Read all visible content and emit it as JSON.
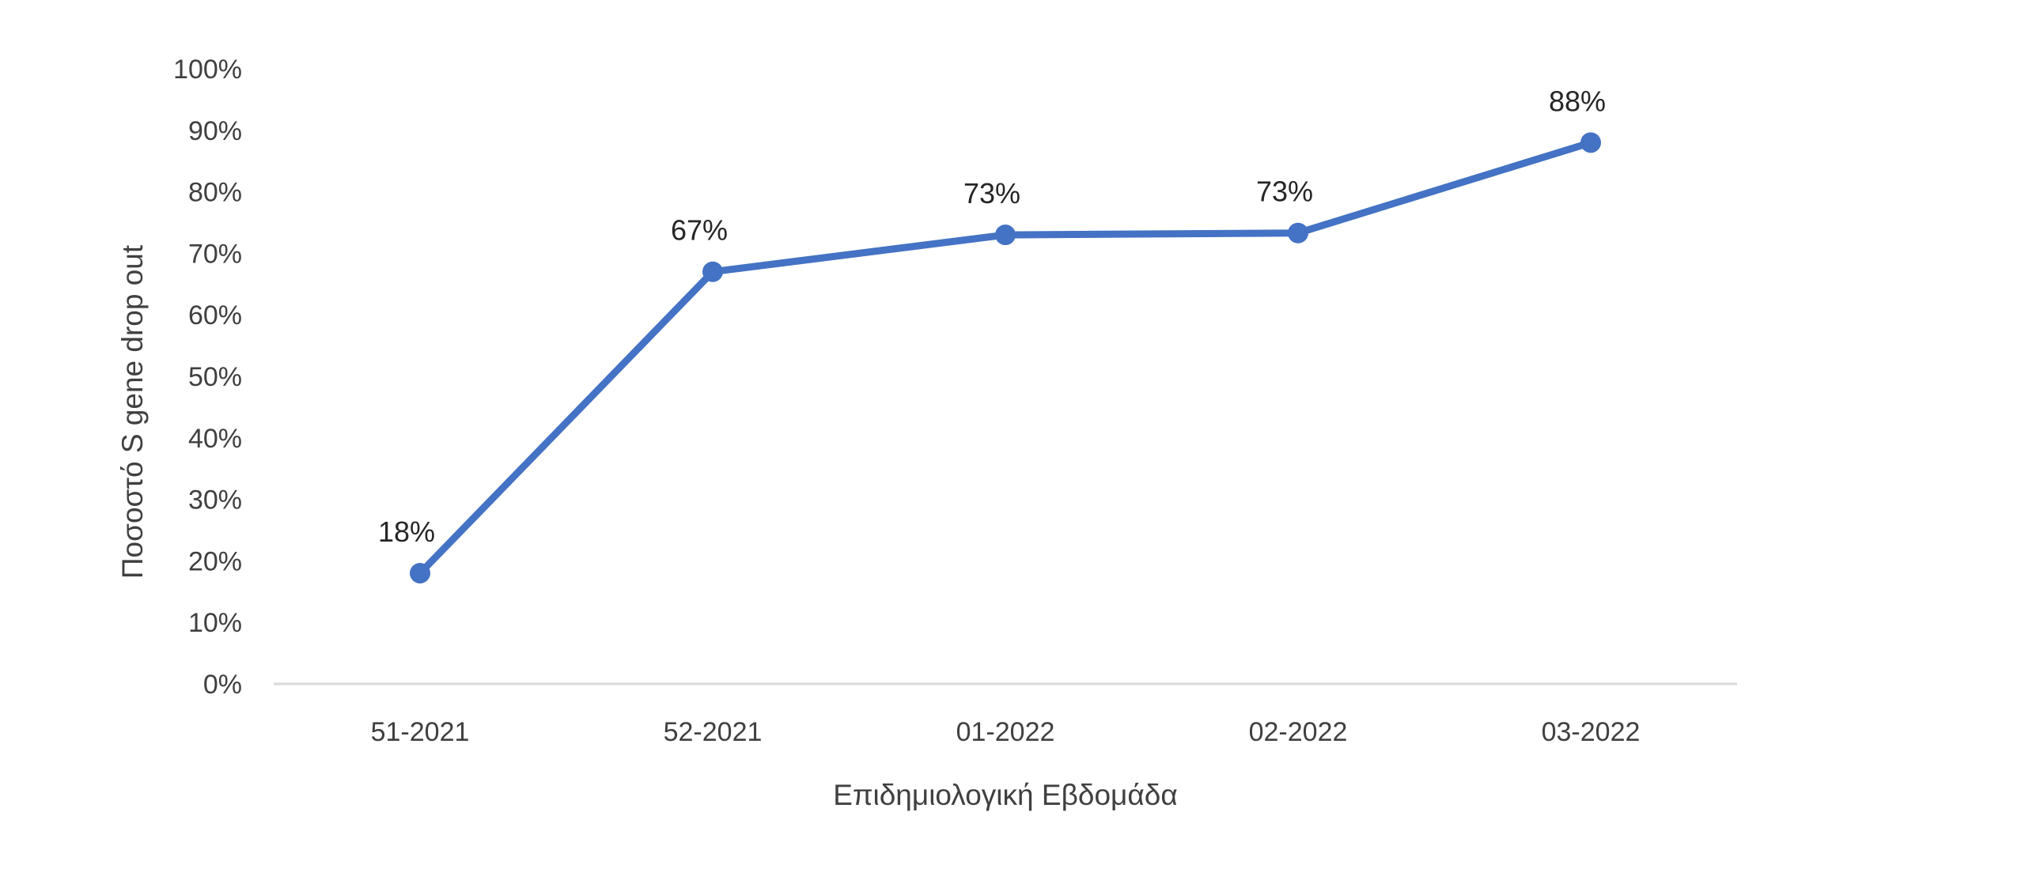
{
  "chart_data": {
    "type": "line",
    "categories": [
      "51-2021",
      "52-2021",
      "01-2022",
      "02-2022",
      "03-2022"
    ],
    "series": [
      {
        "values": [
          18,
          67,
          73,
          73.3,
          88
        ],
        "data_labels": [
          "18%",
          "67%",
          "73%",
          "73%",
          "88%"
        ]
      }
    ],
    "xlabel": "Επιδημιολογική Εβδομάδα",
    "ylabel": "Ποσοστό S gene drop out",
    "ylim": [
      0,
      100
    ],
    "y_ticks": [
      "0%",
      "10%",
      "20%",
      "30%",
      "40%",
      "50%",
      "60%",
      "70%",
      "80%",
      "90%",
      "100%"
    ],
    "grid": false,
    "legend": "none",
    "line_color": "#4472C4",
    "axis_color": "#D9D9D9"
  }
}
